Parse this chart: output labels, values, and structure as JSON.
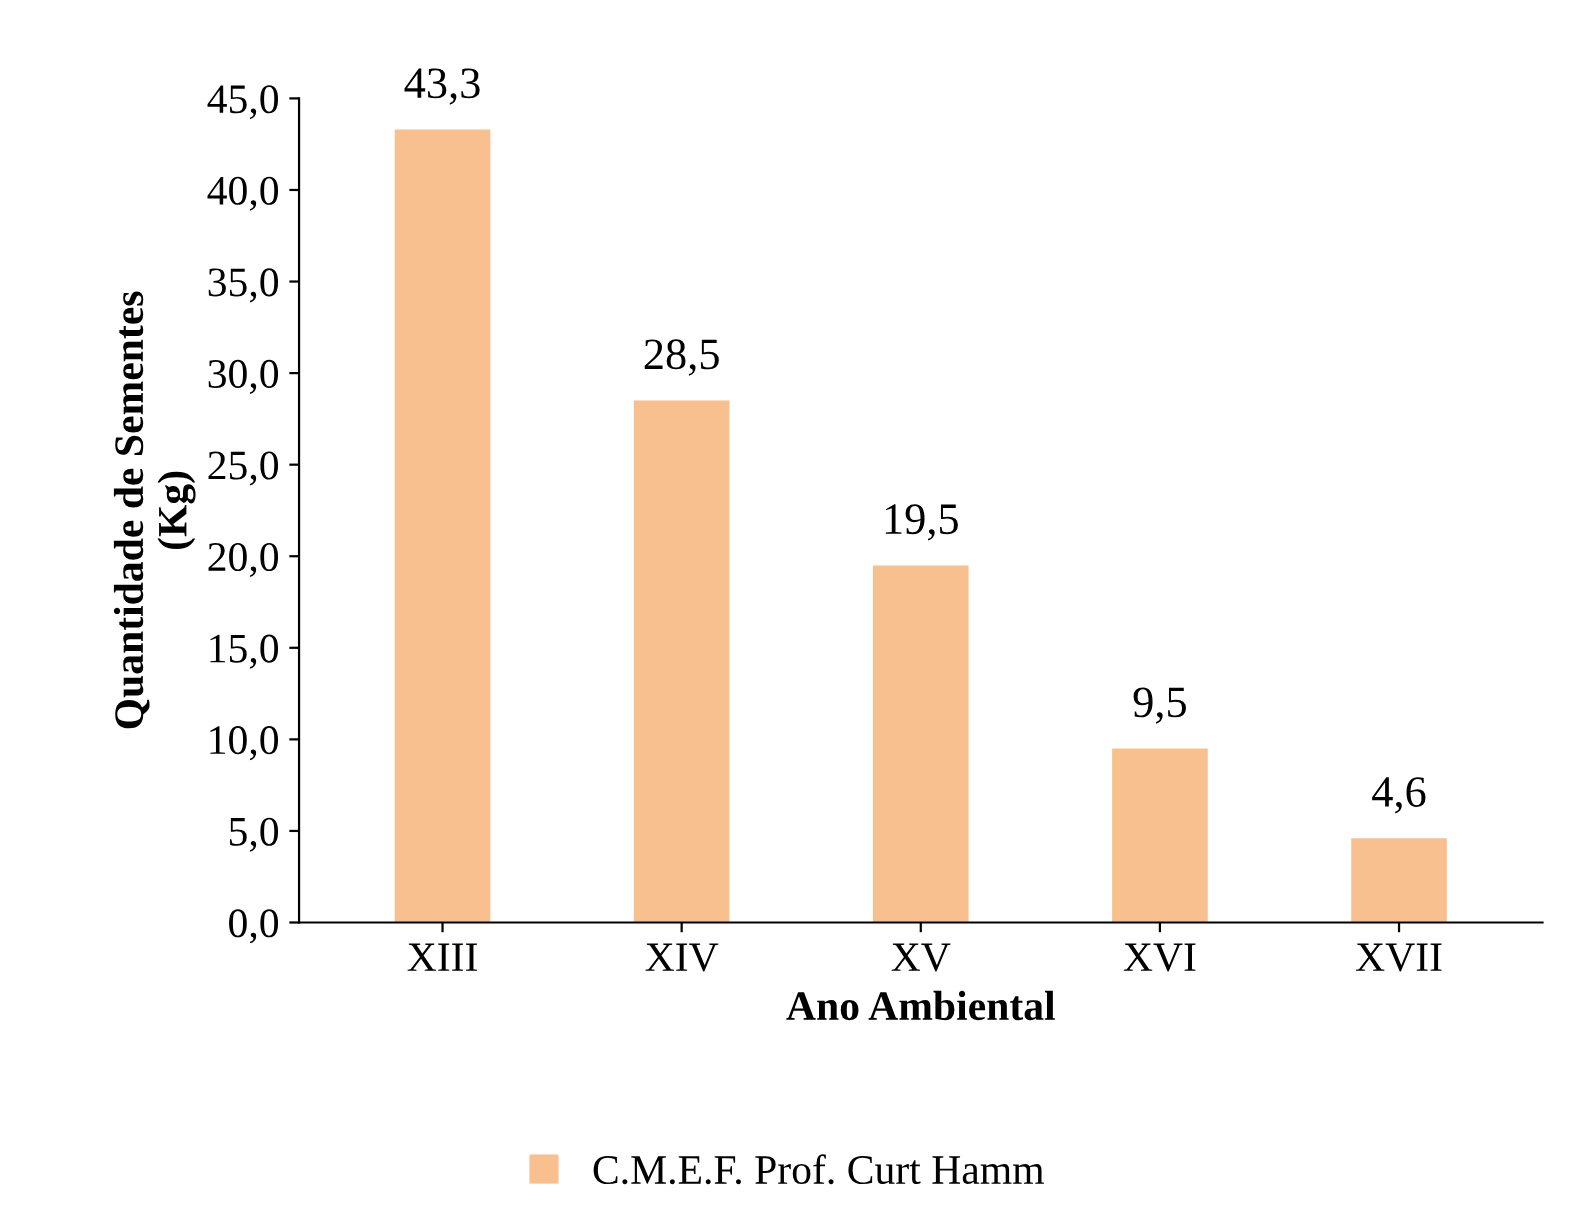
{
  "chart_data": {
    "type": "bar",
    "xlabel": "Ano Ambiental",
    "ylabel": "Quantidade de Sementes\n(Kg)",
    "categories": [
      "XIII",
      "XIV",
      "XV",
      "XVI",
      "XVII"
    ],
    "series": [
      {
        "name": "C.M.E.F. Prof. Curt Hamm",
        "color": "#f9c08f",
        "values": [
          43.3,
          28.5,
          19.5,
          9.5,
          4.6
        ],
        "value_labels": [
          "43,3",
          "28,5",
          "19,5",
          "9,5",
          "4,6"
        ]
      }
    ],
    "ylim": [
      0,
      45
    ],
    "yticks": [
      {
        "value": 0,
        "label": "0,0"
      },
      {
        "value": 5,
        "label": "5,0"
      },
      {
        "value": 10,
        "label": "10,0"
      },
      {
        "value": 15,
        "label": "15,0"
      },
      {
        "value": 20,
        "label": "20,0"
      },
      {
        "value": 25,
        "label": "25,0"
      },
      {
        "value": 30,
        "label": "30,0"
      },
      {
        "value": 35,
        "label": "35,0"
      },
      {
        "value": 40,
        "label": "40,0"
      },
      {
        "value": 45,
        "label": "45,0"
      }
    ],
    "grid": false,
    "legend": "bottom"
  }
}
